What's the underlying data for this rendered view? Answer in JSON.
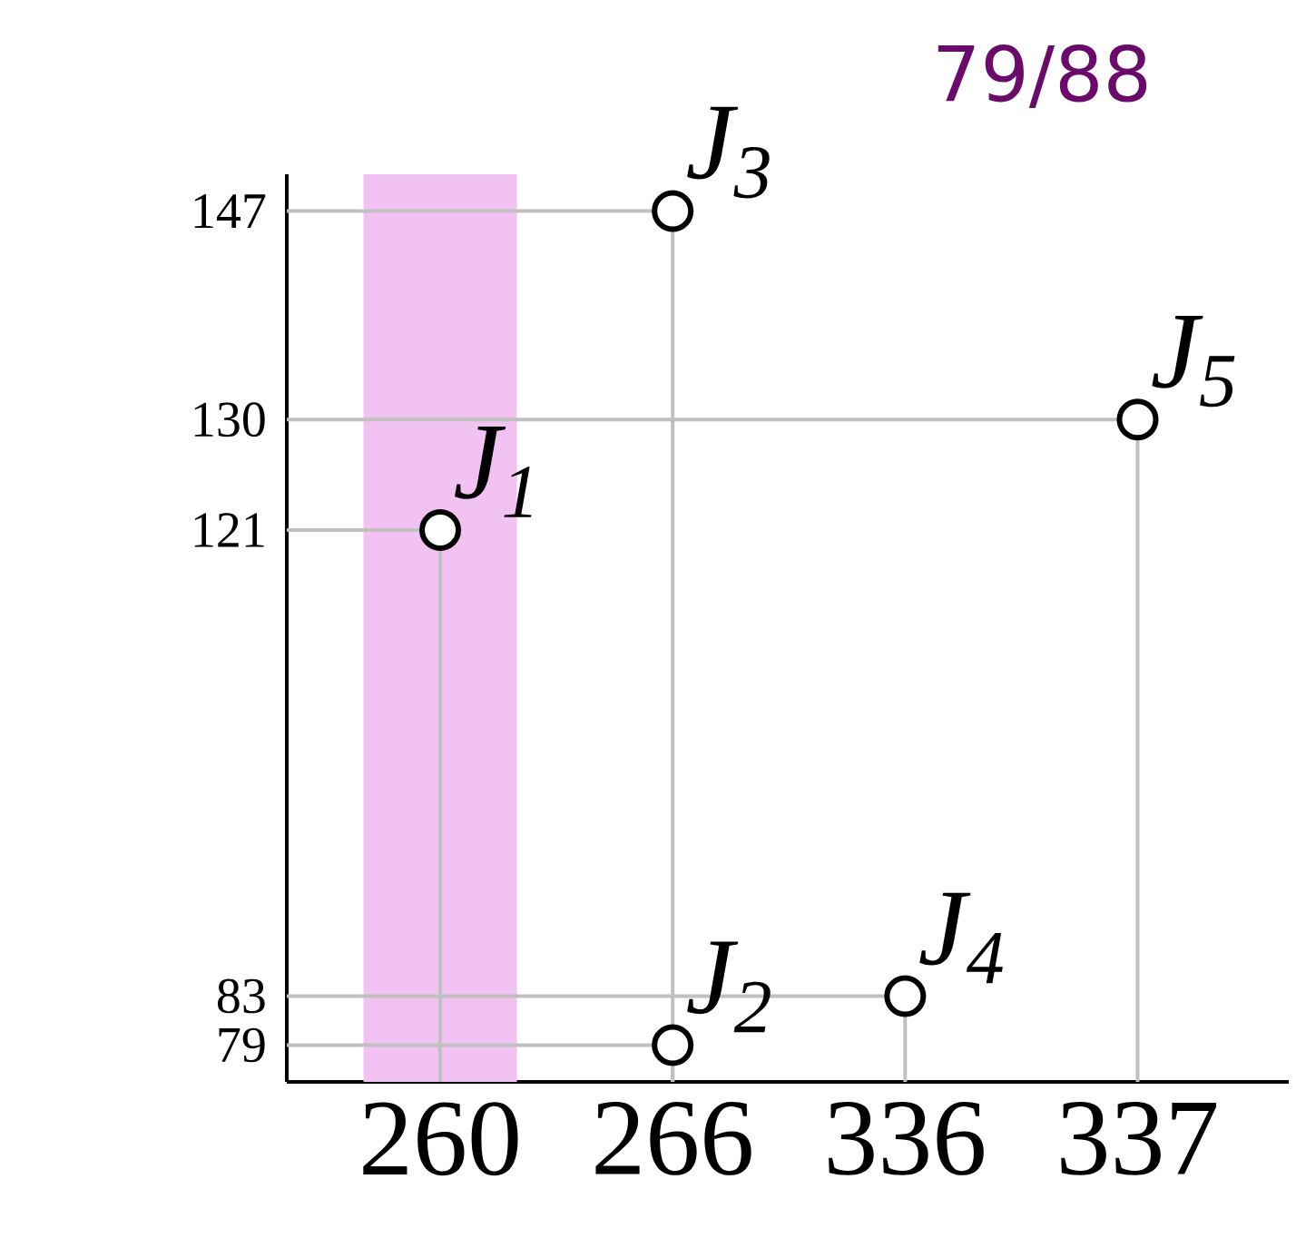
{
  "chart_data": {
    "type": "lollipop",
    "title": "79/88",
    "categories": [
      "260",
      "266",
      "336",
      "337"
    ],
    "series": [
      {
        "x": [
          "260",
          "266",
          "266",
          "336",
          "337"
        ],
        "values": [
          121,
          79,
          147,
          83,
          130
        ],
        "color": "#000000"
      }
    ],
    "ylim": [
      76,
      150
    ],
    "yticks": [
      79,
      83,
      121,
      130,
      147
    ],
    "bands": [
      {
        "axis": "x",
        "from": "260",
        "to": "260",
        "color": "#f2c2f2"
      }
    ],
    "annotations": [
      {
        "text": "J$_{1}$",
        "x": "260",
        "y": 121
      },
      {
        "text": "J$_{2}$",
        "x": "266",
        "y": 79
      },
      {
        "text": "J$_{3}$",
        "x": "266",
        "y": 147
      },
      {
        "text": "J$_{4}$",
        "x": "336",
        "y": 83
      },
      {
        "text": "J$_{5}$",
        "x": "337",
        "y": 130
      }
    ]
  }
}
